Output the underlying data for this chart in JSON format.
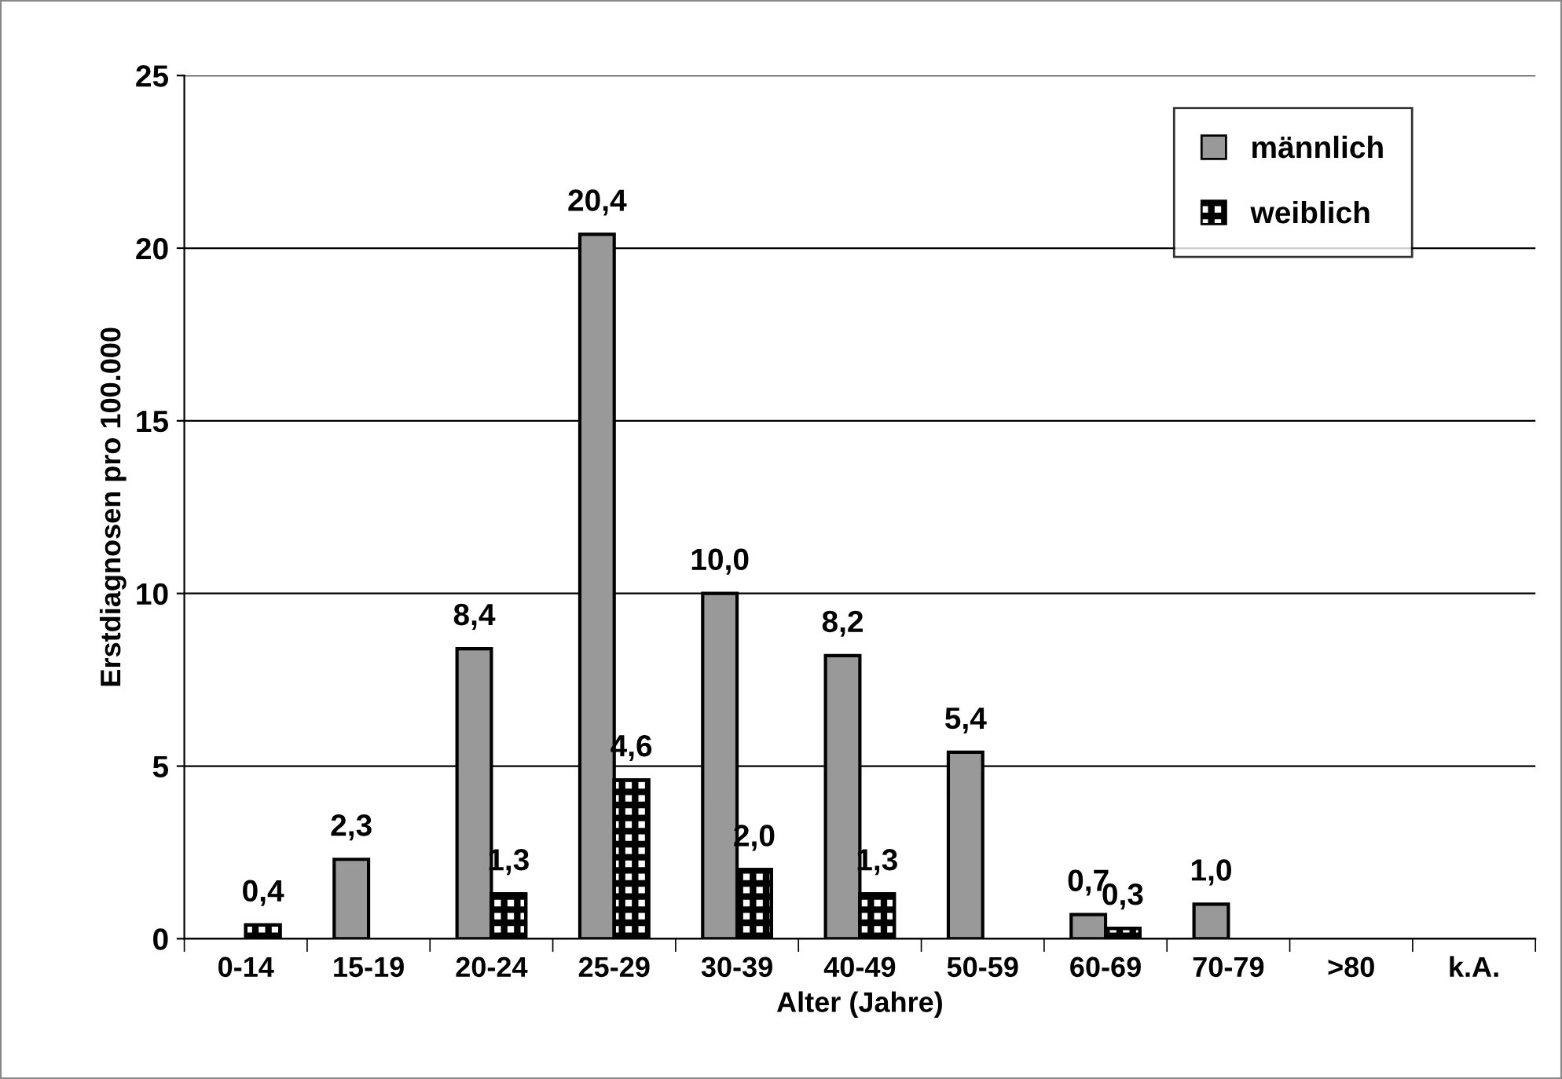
{
  "chart_data": {
    "type": "bar",
    "xlabel": "Alter (Jahre)",
    "ylabel": "Erstdiagnosen pro 100.000",
    "categories": [
      "0-14",
      "15-19",
      "20-24",
      "25-29",
      "30-39",
      "40-49",
      "50-59",
      "60-69",
      "70-79",
      ">80",
      "k.A."
    ],
    "series": [
      {
        "name": "männlich",
        "color": "#999999",
        "values": [
          null,
          2.3,
          8.4,
          20.4,
          10.0,
          8.2,
          5.4,
          0.7,
          1.0,
          null,
          null
        ],
        "value_labels": [
          null,
          "2,3",
          "8,4",
          "20,4",
          "10,0",
          "8,2",
          "5,4",
          "0,7",
          "1,0",
          null,
          null
        ]
      },
      {
        "name": "weiblich",
        "color": "#000000",
        "values": [
          0.4,
          null,
          1.3,
          4.6,
          2.0,
          1.3,
          null,
          0.3,
          null,
          null,
          null
        ],
        "value_labels": [
          "0,4",
          null,
          "1,3",
          "4,6",
          "2,0",
          "1,3",
          null,
          "0,3",
          null,
          null,
          null
        ]
      }
    ],
    "ylim": [
      0,
      25
    ],
    "yticks": [
      0,
      5,
      10,
      15,
      20,
      25
    ],
    "grid": "y",
    "legend": "top right"
  }
}
